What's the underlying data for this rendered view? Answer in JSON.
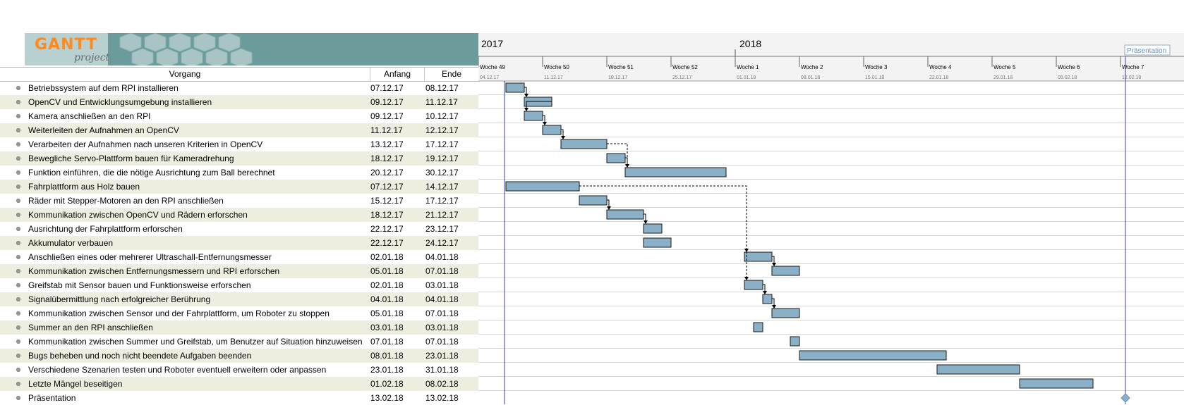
{
  "logo": {
    "main": "GANTT",
    "sub": "project"
  },
  "table": {
    "col_name": "Vorgang",
    "col_start": "Anfang",
    "col_end": "Ende"
  },
  "timeline": {
    "years": [
      "2017",
      "2018"
    ],
    "weeks": [
      {
        "label": "Woche 49",
        "date": "04.12.17"
      },
      {
        "label": "Woche 50",
        "date": "11.12.17"
      },
      {
        "label": "Woche 51",
        "date": "18.12.17"
      },
      {
        "label": "Woche 52",
        "date": "25.12.17"
      },
      {
        "label": "Woche 1",
        "date": "01.01.18"
      },
      {
        "label": "Woche 2",
        "date": "08.01.18"
      },
      {
        "label": "Woche 3",
        "date": "15.01.18"
      },
      {
        "label": "Woche 4",
        "date": "22.01.18"
      },
      {
        "label": "Woche 5",
        "date": "29.01.18"
      },
      {
        "label": "Woche 6",
        "date": "05.02.18"
      },
      {
        "label": "Woche 7",
        "date": "12.02.18"
      }
    ],
    "milestone_label": "Präsentation"
  },
  "tasks": [
    {
      "name": "Betriebssystem auf dem RPI installieren",
      "start": "07.12.17",
      "end": "08.12.17"
    },
    {
      "name": "OpenCV und Entwicklungsumgebung installieren",
      "start": "09.12.17",
      "end": "11.12.17"
    },
    {
      "name": "Kamera anschließen an den RPI",
      "start": "09.12.17",
      "end": "10.12.17"
    },
    {
      "name": "Weiterleiten der Aufnahmen an OpenCV",
      "start": "11.12.17",
      "end": "12.12.17"
    },
    {
      "name": "Verarbeiten der Aufnahmen nach unseren Kriterien in OpenCV",
      "start": "13.12.17",
      "end": "17.12.17"
    },
    {
      "name": "Bewegliche Servo-Plattform bauen für Kameradrehung",
      "start": "18.12.17",
      "end": "19.12.17"
    },
    {
      "name": "Funktion einführen, die die nötige Ausrichtung zum Ball berechnet",
      "start": "20.12.17",
      "end": "30.12.17"
    },
    {
      "name": "Fahrplattform aus Holz bauen",
      "start": "07.12.17",
      "end": "14.12.17"
    },
    {
      "name": "Räder mit Stepper-Motoren an den RPI anschließen",
      "start": "15.12.17",
      "end": "17.12.17"
    },
    {
      "name": "Kommunikation zwischen OpenCV und Rädern erforschen",
      "start": "18.12.17",
      "end": "21.12.17"
    },
    {
      "name": "Ausrichtung der Fahrplattform erforschen",
      "start": "22.12.17",
      "end": "23.12.17"
    },
    {
      "name": "Akkumulator verbauen",
      "start": "22.12.17",
      "end": "24.12.17"
    },
    {
      "name": "Anschließen eines oder mehrerer Ultraschall-Entfernungsmesser",
      "start": "02.01.18",
      "end": "04.01.18"
    },
    {
      "name": "Kommunikation zwischen Entfernungsmessern und RPI erforschen",
      "start": "05.01.18",
      "end": "07.01.18"
    },
    {
      "name": "Greifstab mit Sensor bauen und Funktionsweise erforschen",
      "start": "02.01.18",
      "end": "03.01.18"
    },
    {
      "name": "Signalübermittlung nach erfolgreicher Berührung",
      "start": "04.01.18",
      "end": "04.01.18"
    },
    {
      "name": "Kommunikation zwischen Sensor und der Fahrplattform, um Roboter zu stoppen",
      "start": "05.01.18",
      "end": "07.01.18"
    },
    {
      "name": "Summer an den RPI anschließen",
      "start": "03.01.18",
      "end": "03.01.18"
    },
    {
      "name": "Kommunikation zwischen Summer und Greifstab, um Benutzer auf Situation hinzuweisen",
      "start": "07.01.18",
      "end": "07.01.18"
    },
    {
      "name": "Bugs beheben und noch nicht beendete Aufgaben beenden",
      "start": "08.01.18",
      "end": "23.01.18"
    },
    {
      "name": "Verschiedene Szenarien testen und Roboter eventuell erweitern oder anpassen",
      "start": "23.01.18",
      "end": "31.01.18"
    },
    {
      "name": "Letzte Mängel beseitigen",
      "start": "01.02.18",
      "end": "08.02.18"
    },
    {
      "name": "Präsentation",
      "start": "13.02.18",
      "end": "13.02.18"
    }
  ],
  "links": [
    [
      0,
      1
    ],
    [
      1,
      2
    ],
    [
      2,
      3
    ],
    [
      3,
      4
    ],
    [
      4,
      6
    ],
    [
      5,
      6
    ],
    [
      7,
      12
    ],
    [
      8,
      9
    ],
    [
      9,
      10
    ],
    [
      12,
      13
    ],
    [
      14,
      15
    ],
    [
      15,
      16
    ],
    [
      7,
      14
    ]
  ],
  "colors": {
    "bar": "#8ab0c8",
    "bar_border": "#1a1a1a",
    "today_line": "#4040a0",
    "header_band": "#6b9b9b",
    "alt_row": "#eeeee0"
  }
}
